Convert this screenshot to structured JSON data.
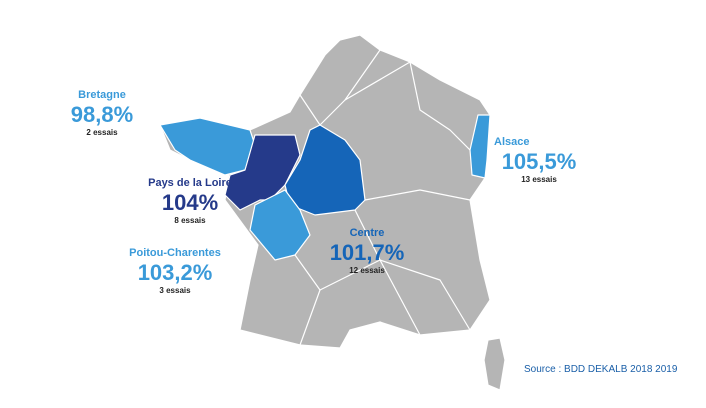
{
  "regions": [
    {
      "name": "Bretagne",
      "value": "98,8%",
      "trials": "2 essais"
    },
    {
      "name": "Pays de la Loire",
      "value": "104%",
      "trials": "8 essais"
    },
    {
      "name": "Poitou-Charentes",
      "value": "103,2%",
      "trials": "3 essais"
    },
    {
      "name": "Centre",
      "value": "101,7%",
      "trials": "12 essais"
    },
    {
      "name": "Alsace",
      "value": "105,5%",
      "trials": "13 essais"
    }
  ],
  "source": "Source : BDD DEKALB 2018 2019"
}
